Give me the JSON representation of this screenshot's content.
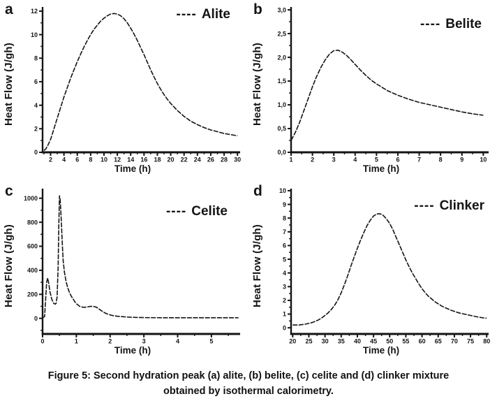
{
  "figure": {
    "caption_line1": "Figure 5: Second hydration peak (a) alite, (b) belite, (c) celite and (d) clinker mixture",
    "caption_line2": "obtained by isothermal calorimetry."
  },
  "ink_color": "#141414",
  "chart_data": [
    {
      "type": "line",
      "letter": "a",
      "series_name": "Alite",
      "legend_dash": "----",
      "xlabel": "Time (h)",
      "ylabel": "Heat Flow (J/gh)",
      "legend_position": "top-right",
      "grid": false,
      "xlim": [
        0.8,
        30.4
      ],
      "ylim": [
        0,
        12.35
      ],
      "xtick_vals": [
        2,
        4,
        6,
        8,
        10,
        12,
        14,
        16,
        18,
        20,
        22,
        24,
        26,
        28,
        30
      ],
      "xtick_labels": [
        "2",
        "4",
        "6",
        "8",
        "10",
        "12",
        "14",
        "16",
        "18",
        "20",
        "22",
        "24",
        "26",
        "28",
        "30"
      ],
      "xminor_step": 1,
      "ytick_vals": [
        0,
        2,
        4,
        6,
        8,
        10,
        12
      ],
      "ytick_labels": [
        "0",
        "2",
        "4",
        "6",
        "8",
        "10",
        "12"
      ],
      "yminor_step": 1,
      "points": [
        [
          1,
          0.15
        ],
        [
          1.3,
          0.3
        ],
        [
          1.6,
          0.6
        ],
        [
          2,
          1.1
        ],
        [
          2.5,
          2.0
        ],
        [
          3,
          2.9
        ],
        [
          3.5,
          3.8
        ],
        [
          4,
          4.7
        ],
        [
          4.5,
          5.5
        ],
        [
          5,
          6.3
        ],
        [
          5.5,
          7.0
        ],
        [
          6,
          7.7
        ],
        [
          6.5,
          8.35
        ],
        [
          7,
          8.95
        ],
        [
          7.5,
          9.5
        ],
        [
          8,
          10.0
        ],
        [
          8.5,
          10.45
        ],
        [
          9,
          10.8
        ],
        [
          9.5,
          11.15
        ],
        [
          10,
          11.4
        ],
        [
          10.5,
          11.6
        ],
        [
          11,
          11.75
        ],
        [
          11.5,
          11.8
        ],
        [
          12,
          11.75
        ],
        [
          12.5,
          11.6
        ],
        [
          13,
          11.35
        ],
        [
          13.5,
          11.0
        ],
        [
          14,
          10.55
        ],
        [
          14.5,
          10.05
        ],
        [
          15,
          9.5
        ],
        [
          15.5,
          8.9
        ],
        [
          16,
          8.3
        ],
        [
          16.5,
          7.65
        ],
        [
          17,
          7.0
        ],
        [
          17.5,
          6.4
        ],
        [
          18,
          5.85
        ],
        [
          18.5,
          5.35
        ],
        [
          19,
          4.9
        ],
        [
          19.5,
          4.5
        ],
        [
          20,
          4.15
        ],
        [
          21,
          3.55
        ],
        [
          22,
          3.05
        ],
        [
          23,
          2.65
        ],
        [
          24,
          2.35
        ],
        [
          25,
          2.1
        ],
        [
          26,
          1.9
        ],
        [
          27,
          1.75
        ],
        [
          28,
          1.6
        ],
        [
          29,
          1.5
        ],
        [
          30,
          1.4
        ]
      ]
    },
    {
      "type": "line",
      "letter": "b",
      "series_name": "Belite",
      "legend_dash": "----",
      "xlabel": "Time (h)",
      "ylabel": "Heat Flow (J/gh)",
      "legend_position": "top-right",
      "grid": false,
      "xlim": [
        1,
        10.25
      ],
      "ylim": [
        0,
        3.06
      ],
      "xtick_vals": [
        1,
        2,
        3,
        4,
        5,
        6,
        7,
        8,
        9,
        10
      ],
      "xtick_labels": [
        "1",
        "2",
        "3",
        "4",
        "5",
        "6",
        "7",
        "8",
        "9",
        "10"
      ],
      "xminor_step": 0.5,
      "ytick_vals": [
        0,
        0.5,
        1.0,
        1.5,
        2.0,
        2.5,
        3.0
      ],
      "ytick_labels": [
        "0,0",
        "0,5",
        "1,0",
        "1,5",
        "2,0",
        "2,5",
        "3,0"
      ],
      "yminor_step": 0.25,
      "points": [
        [
          1,
          0.25
        ],
        [
          1.2,
          0.42
        ],
        [
          1.4,
          0.63
        ],
        [
          1.6,
          0.88
        ],
        [
          1.8,
          1.13
        ],
        [
          2,
          1.38
        ],
        [
          2.2,
          1.6
        ],
        [
          2.4,
          1.79
        ],
        [
          2.6,
          1.95
        ],
        [
          2.8,
          2.07
        ],
        [
          3,
          2.14
        ],
        [
          3.2,
          2.15
        ],
        [
          3.4,
          2.11
        ],
        [
          3.6,
          2.04
        ],
        [
          3.8,
          1.95
        ],
        [
          4,
          1.85
        ],
        [
          4.25,
          1.73
        ],
        [
          4.5,
          1.62
        ],
        [
          4.75,
          1.52
        ],
        [
          5,
          1.44
        ],
        [
          5.5,
          1.3
        ],
        [
          6,
          1.2
        ],
        [
          6.5,
          1.12
        ],
        [
          7,
          1.05
        ],
        [
          7.5,
          1.0
        ],
        [
          8,
          0.95
        ],
        [
          8.5,
          0.9
        ],
        [
          9,
          0.85
        ],
        [
          9.5,
          0.81
        ],
        [
          10,
          0.78
        ]
      ]
    },
    {
      "type": "line",
      "letter": "c",
      "series_name": "Celite",
      "legend_dash": "----",
      "xlabel": "Time (h)",
      "ylabel": "Heat Flow (J/gh)",
      "legend_position": "top-right",
      "grid": false,
      "xlim": [
        0,
        5.85
      ],
      "ylim": [
        -130,
        1080
      ],
      "xtick_vals": [
        0,
        1,
        2,
        3,
        4,
        5
      ],
      "xtick_labels": [
        "0",
        "1",
        "2",
        "3",
        "4",
        "5"
      ],
      "xminor_step": 0.5,
      "ytick_vals": [
        0,
        200,
        400,
        600,
        800,
        1000
      ],
      "ytick_labels": [
        "0",
        "200",
        "400",
        "600",
        "800",
        "1000"
      ],
      "yminor_step": 100,
      "points": [
        [
          0,
          5
        ],
        [
          0.06,
          15
        ],
        [
          0.09,
          160
        ],
        [
          0.12,
          300
        ],
        [
          0.15,
          335
        ],
        [
          0.18,
          295
        ],
        [
          0.22,
          220
        ],
        [
          0.27,
          160
        ],
        [
          0.32,
          128
        ],
        [
          0.37,
          118
        ],
        [
          0.4,
          125
        ],
        [
          0.43,
          180
        ],
        [
          0.46,
          430
        ],
        [
          0.48,
          760
        ],
        [
          0.5,
          1020
        ],
        [
          0.52,
          990
        ],
        [
          0.55,
          840
        ],
        [
          0.58,
          640
        ],
        [
          0.61,
          480
        ],
        [
          0.65,
          380
        ],
        [
          0.7,
          300
        ],
        [
          0.75,
          250
        ],
        [
          0.8,
          212
        ],
        [
          0.85,
          185
        ],
        [
          0.9,
          163
        ],
        [
          0.95,
          140
        ],
        [
          1.0,
          122
        ],
        [
          1.1,
          100
        ],
        [
          1.2,
          92
        ],
        [
          1.3,
          93
        ],
        [
          1.4,
          99
        ],
        [
          1.5,
          100
        ],
        [
          1.6,
          92
        ],
        [
          1.7,
          72
        ],
        [
          1.8,
          52
        ],
        [
          1.9,
          38
        ],
        [
          2.0,
          28
        ],
        [
          2.1,
          22
        ],
        [
          2.2,
          18
        ],
        [
          2.4,
          13
        ],
        [
          2.6,
          9
        ],
        [
          2.8,
          7
        ],
        [
          3.0,
          6
        ],
        [
          3.5,
          5
        ],
        [
          4.0,
          5
        ],
        [
          4.5,
          5
        ],
        [
          5.0,
          5
        ],
        [
          5.5,
          5
        ],
        [
          5.8,
          5
        ]
      ]
    },
    {
      "type": "line",
      "letter": "d",
      "series_name": "Clinker",
      "legend_dash": "----",
      "xlabel": "Time (h)",
      "ylabel": "Heat Flow (J/gh)",
      "legend_position": "top-right",
      "grid": false,
      "xlim": [
        19.5,
        80.6
      ],
      "ylim": [
        -0.45,
        10.15
      ],
      "xtick_vals": [
        20,
        25,
        30,
        35,
        40,
        45,
        50,
        55,
        60,
        65,
        70,
        75,
        80
      ],
      "xtick_labels": [
        "20",
        "25",
        "30",
        "35",
        "40",
        "45",
        "50",
        "55",
        "60",
        "65",
        "70",
        "75",
        "80"
      ],
      "xminor_step": 2.5,
      "ytick_vals": [
        0,
        1,
        2,
        3,
        4,
        5,
        6,
        7,
        8,
        9,
        10
      ],
      "ytick_labels": [
        "0",
        "1",
        "2",
        "3",
        "4",
        "5",
        "6",
        "7",
        "8",
        "9",
        "10"
      ],
      "yminor_step": 0.5,
      "points": [
        [
          20,
          0.2
        ],
        [
          22,
          0.2
        ],
        [
          24,
          0.27
        ],
        [
          25,
          0.32
        ],
        [
          26,
          0.38
        ],
        [
          27,
          0.47
        ],
        [
          28,
          0.58
        ],
        [
          29,
          0.72
        ],
        [
          30,
          0.9
        ],
        [
          31,
          1.1
        ],
        [
          32,
          1.35
        ],
        [
          33,
          1.65
        ],
        [
          34,
          2.05
        ],
        [
          35,
          2.55
        ],
        [
          36,
          3.15
        ],
        [
          37,
          3.8
        ],
        [
          38,
          4.5
        ],
        [
          39,
          5.15
        ],
        [
          40,
          5.8
        ],
        [
          41,
          6.4
        ],
        [
          42,
          6.95
        ],
        [
          43,
          7.45
        ],
        [
          44,
          7.85
        ],
        [
          45,
          8.15
        ],
        [
          46,
          8.3
        ],
        [
          47,
          8.32
        ],
        [
          48,
          8.2
        ],
        [
          49,
          7.95
        ],
        [
          50,
          7.6
        ],
        [
          51,
          7.15
        ],
        [
          52,
          6.6
        ],
        [
          53,
          6.05
        ],
        [
          54,
          5.5
        ],
        [
          55,
          4.95
        ],
        [
          56,
          4.45
        ],
        [
          57,
          4.0
        ],
        [
          58,
          3.6
        ],
        [
          59,
          3.2
        ],
        [
          60,
          2.85
        ],
        [
          61,
          2.55
        ],
        [
          62,
          2.3
        ],
        [
          63,
          2.1
        ],
        [
          64,
          1.9
        ],
        [
          65,
          1.75
        ],
        [
          66,
          1.6
        ],
        [
          67,
          1.48
        ],
        [
          68,
          1.38
        ],
        [
          69,
          1.28
        ],
        [
          70,
          1.2
        ],
        [
          71,
          1.12
        ],
        [
          72,
          1.05
        ],
        [
          73,
          1.0
        ],
        [
          74,
          0.95
        ],
        [
          75,
          0.9
        ],
        [
          76,
          0.85
        ],
        [
          77,
          0.8
        ],
        [
          78,
          0.76
        ],
        [
          79,
          0.72
        ],
        [
          80,
          0.7
        ]
      ]
    }
  ]
}
